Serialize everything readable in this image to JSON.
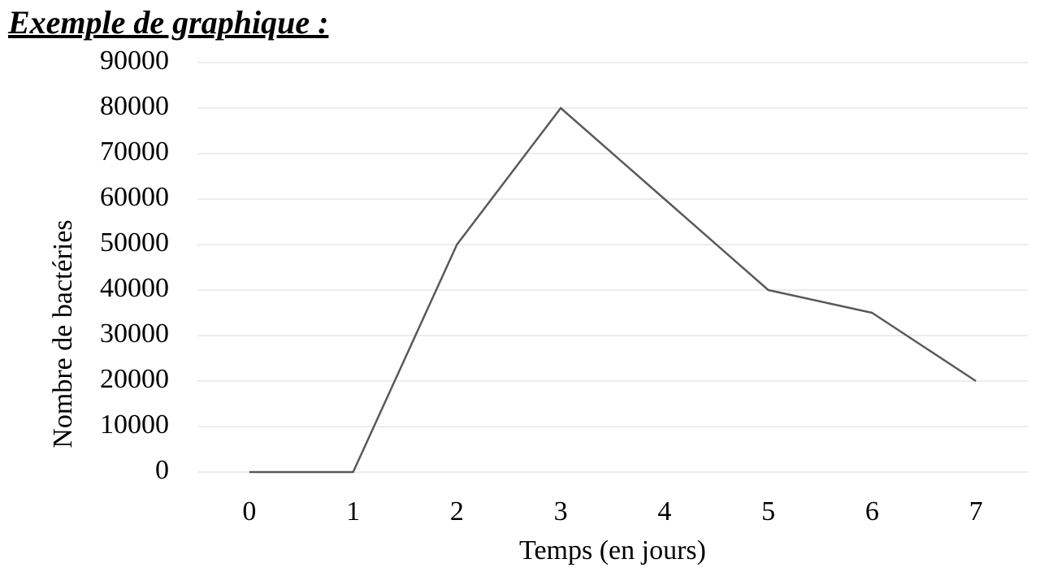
{
  "chart_data": {
    "type": "line",
    "title": "Exemple de graphique :",
    "x_label": "Temps (en jours)",
    "y_label": "Nombre de bactéries",
    "categories": [
      "0",
      "1",
      "2",
      "3",
      "4",
      "5",
      "6",
      "7"
    ],
    "values": [
      0,
      0,
      50000,
      80000,
      60000,
      40000,
      35000,
      20000
    ],
    "color": "#595959",
    "ylim": [
      0,
      90000
    ],
    "yticks": [
      0,
      10000,
      20000,
      30000,
      40000,
      50000,
      60000,
      70000,
      80000,
      90000
    ],
    "grid": true
  }
}
